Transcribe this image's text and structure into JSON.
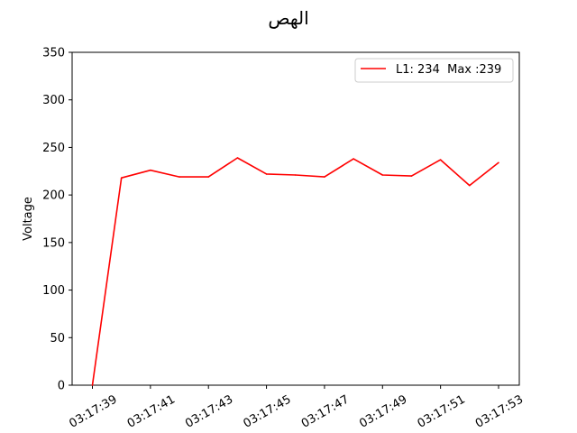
{
  "chart_data": {
    "type": "line",
    "title": "الهص",
    "xlabel": "",
    "ylabel": "Voltage",
    "ylim": [
      0,
      350
    ],
    "yticks": [
      0,
      50,
      100,
      150,
      200,
      250,
      300,
      350
    ],
    "x": [
      "03:17:39",
      "03:17:40",
      "03:17:41",
      "03:17:42",
      "03:17:43",
      "03:17:44",
      "03:17:45",
      "03:17:46",
      "03:17:47",
      "03:17:48",
      "03:17:49",
      "03:17:50",
      "03:17:51",
      "03:17:52",
      "03:17:53"
    ],
    "xtick_labels": [
      "03:17:39",
      "03:17:41",
      "03:17:43",
      "03:17:45",
      "03:17:47",
      "03:17:49",
      "03:17:51",
      "03:17:53"
    ],
    "series": [
      {
        "name": "L1: 234  Max :239",
        "color": "#ff0000",
        "values": [
          0,
          218,
          226,
          219,
          219,
          239,
          222,
          221,
          219,
          238,
          221,
          220,
          237,
          210,
          234
        ]
      }
    ],
    "grid": false,
    "legend_position": "top-right",
    "xtick_rotation": "30deg"
  }
}
